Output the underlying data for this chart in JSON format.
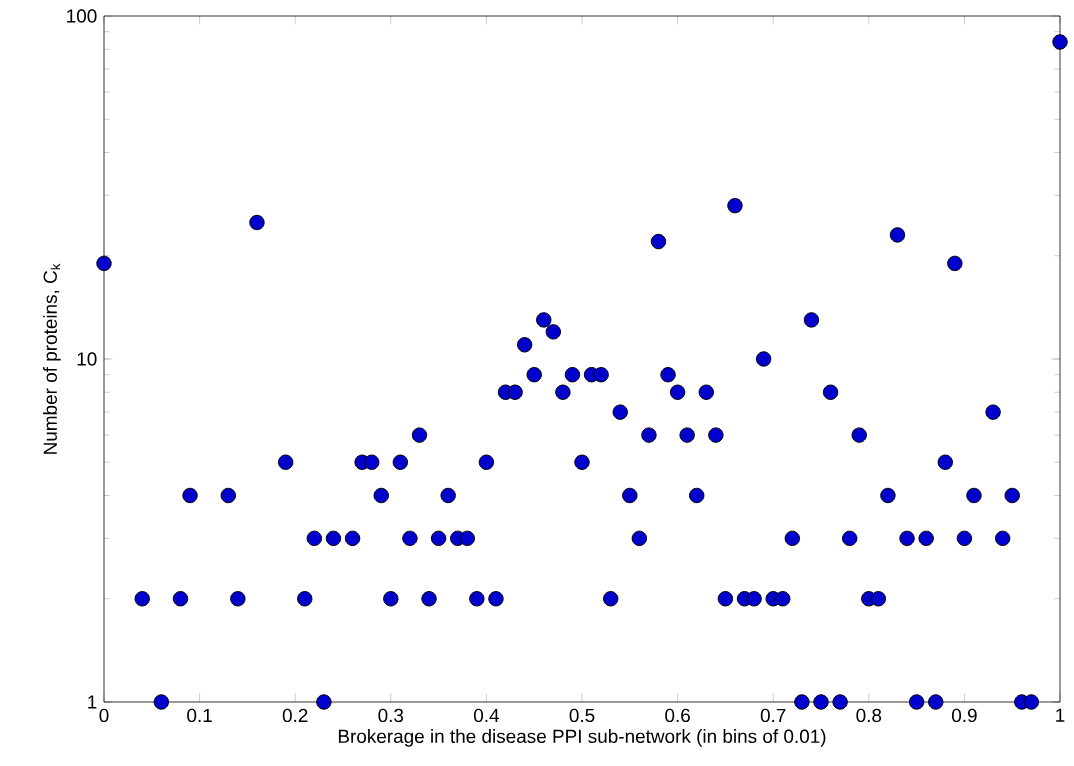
{
  "chart_data": {
    "type": "scatter",
    "xlabel": "Brokerage in the disease PPI sub-network (in bins of 0.01)",
    "ylabel": "Number of proteins, C$_{k}$",
    "x": [
      0.0,
      0.04,
      0.06,
      0.08,
      0.09,
      0.13,
      0.14,
      0.16,
      0.19,
      0.21,
      0.22,
      0.23,
      0.24,
      0.26,
      0.27,
      0.28,
      0.29,
      0.3,
      0.31,
      0.32,
      0.33,
      0.34,
      0.35,
      0.36,
      0.37,
      0.38,
      0.39,
      0.4,
      0.41,
      0.42,
      0.43,
      0.44,
      0.45,
      0.46,
      0.47,
      0.48,
      0.49,
      0.5,
      0.51,
      0.52,
      0.53,
      0.54,
      0.55,
      0.56,
      0.57,
      0.58,
      0.59,
      0.6,
      0.61,
      0.62,
      0.63,
      0.64,
      0.65,
      0.66,
      0.67,
      0.68,
      0.69,
      0.7,
      0.71,
      0.72,
      0.73,
      0.74,
      0.75,
      0.76,
      0.77,
      0.78,
      0.79,
      0.8,
      0.81,
      0.82,
      0.83,
      0.84,
      0.85,
      0.86,
      0.87,
      0.88,
      0.89,
      0.9,
      0.91,
      0.93,
      0.94,
      0.95,
      0.96,
      0.97,
      1.0
    ],
    "values": [
      19,
      2,
      1,
      2,
      4,
      4,
      2,
      25,
      5,
      2,
      3,
      1,
      3,
      3,
      5,
      5,
      4,
      2,
      5,
      3,
      6,
      2,
      3,
      4,
      3,
      3,
      2,
      5,
      2,
      8,
      8,
      11,
      9,
      13,
      12,
      8,
      9,
      5,
      9,
      9,
      2,
      7,
      4,
      3,
      6,
      22,
      9,
      8,
      6,
      4,
      8,
      6,
      2,
      28,
      2,
      2,
      10,
      2,
      2,
      3,
      1,
      13,
      1,
      8,
      1,
      3,
      6,
      2,
      2,
      4,
      23,
      3,
      1,
      3,
      1,
      5,
      19,
      3,
      4,
      7,
      3,
      4,
      1,
      1,
      84
    ],
    "color": "#0000cc",
    "marker": "circle",
    "log": "y",
    "xlim": [
      0,
      1
    ],
    "ylim": [
      1,
      100
    ],
    "xticks": [
      0,
      0.1,
      0.2,
      0.3,
      0.4,
      0.5,
      0.6,
      0.7,
      0.8,
      0.9,
      1
    ],
    "yticks": [
      1,
      10,
      100
    ]
  }
}
